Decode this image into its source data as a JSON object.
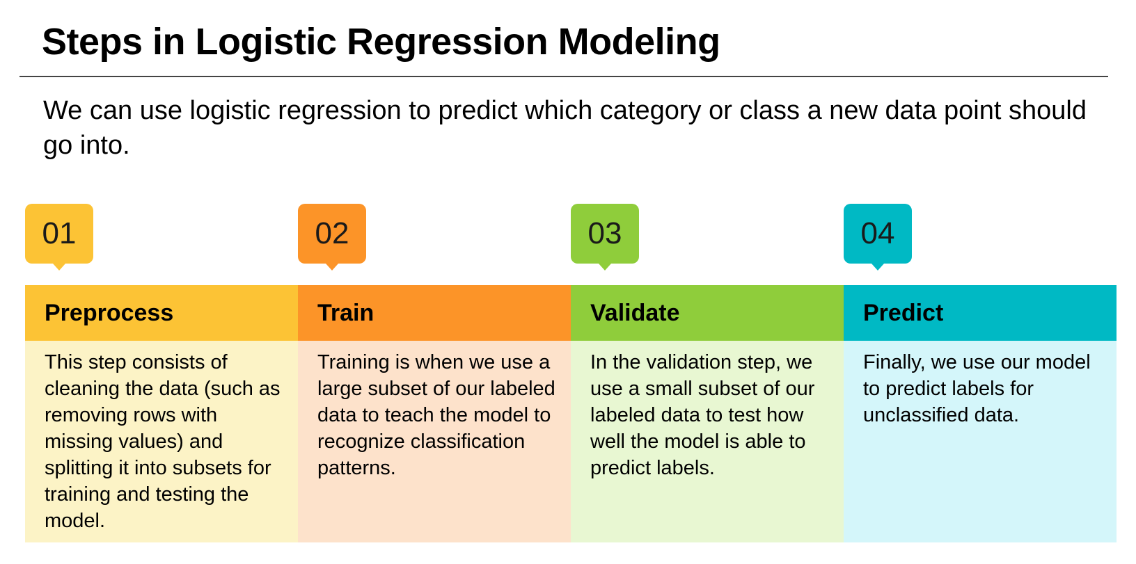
{
  "slide": {
    "title": "Steps in Logistic Regression Modeling",
    "intro": "We can use logistic regression to predict which category or class a new data point should go into."
  },
  "steps": [
    {
      "number": "01",
      "title": "Preprocess",
      "description": "This step consists of cleaning the data (such as removing rows with missing values) and splitting it into subsets for training and testing the model.",
      "accent_color": "#FCC335",
      "body_color": "#FCF3C6"
    },
    {
      "number": "02",
      "title": "Train",
      "description": "Training is when we use a large subset of our labeled data to teach the model to recognize classification patterns.",
      "accent_color": "#FC9428",
      "body_color": "#FDE2CB"
    },
    {
      "number": "03",
      "title": "Validate",
      "description": "In the validation step, we use a small subset of our labeled data to test how well the model is able to predict labels.",
      "accent_color": "#8FCD3B",
      "body_color": "#E8F7D2"
    },
    {
      "number": "04",
      "title": "Predict",
      "description": "Finally, we use our model to predict labels for unclassified data.",
      "accent_color": "#00B9C4",
      "body_color": "#D4F6FA"
    }
  ]
}
